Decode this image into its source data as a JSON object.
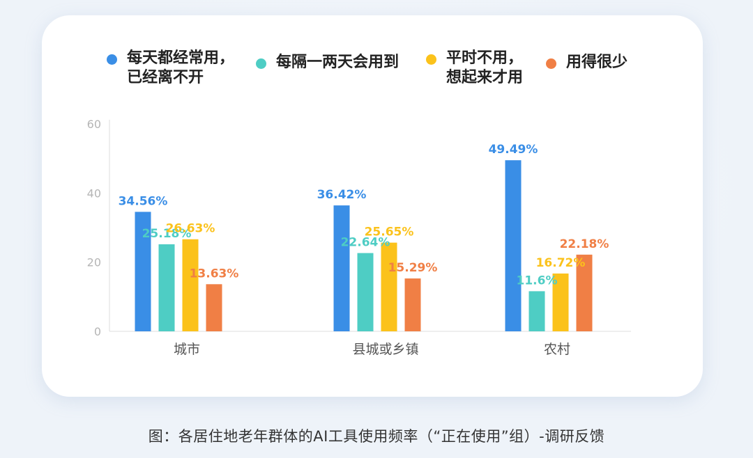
{
  "chart_data": {
    "type": "bar",
    "categories": [
      "城市",
      "县城或乡镇",
      "农村"
    ],
    "series": [
      {
        "name": "每天都经常用，\n已经离不开",
        "color": "#3a8ee6",
        "values": [
          34.56,
          36.42,
          49.49
        ],
        "labels": [
          "34.56%",
          "36.42%",
          "49.49%"
        ]
      },
      {
        "name": "每隔一两天会用到",
        "color": "#4ecdc4",
        "values": [
          25.18,
          22.64,
          11.6
        ],
        "labels": [
          "25.18%",
          "22.64%",
          "11.6%"
        ]
      },
      {
        "name": "平时不用，\n想起来才用",
        "color": "#fbc21b",
        "values": [
          26.63,
          25.65,
          16.72
        ],
        "labels": [
          "26.63%",
          "25.65%",
          "16.72%"
        ]
      },
      {
        "name": "用得很少",
        "color": "#f07f45",
        "values": [
          13.63,
          15.29,
          22.18
        ],
        "labels": [
          "13.63%",
          "15.29%",
          "22.18%"
        ]
      }
    ],
    "ylim": [
      0,
      60
    ],
    "yticks": [
      0,
      20,
      40,
      60
    ],
    "legend_position": "top",
    "grid": false
  },
  "caption": "图：各居住地老年群体的AI工具使用频率（“正在使用”组）-调研反馈"
}
